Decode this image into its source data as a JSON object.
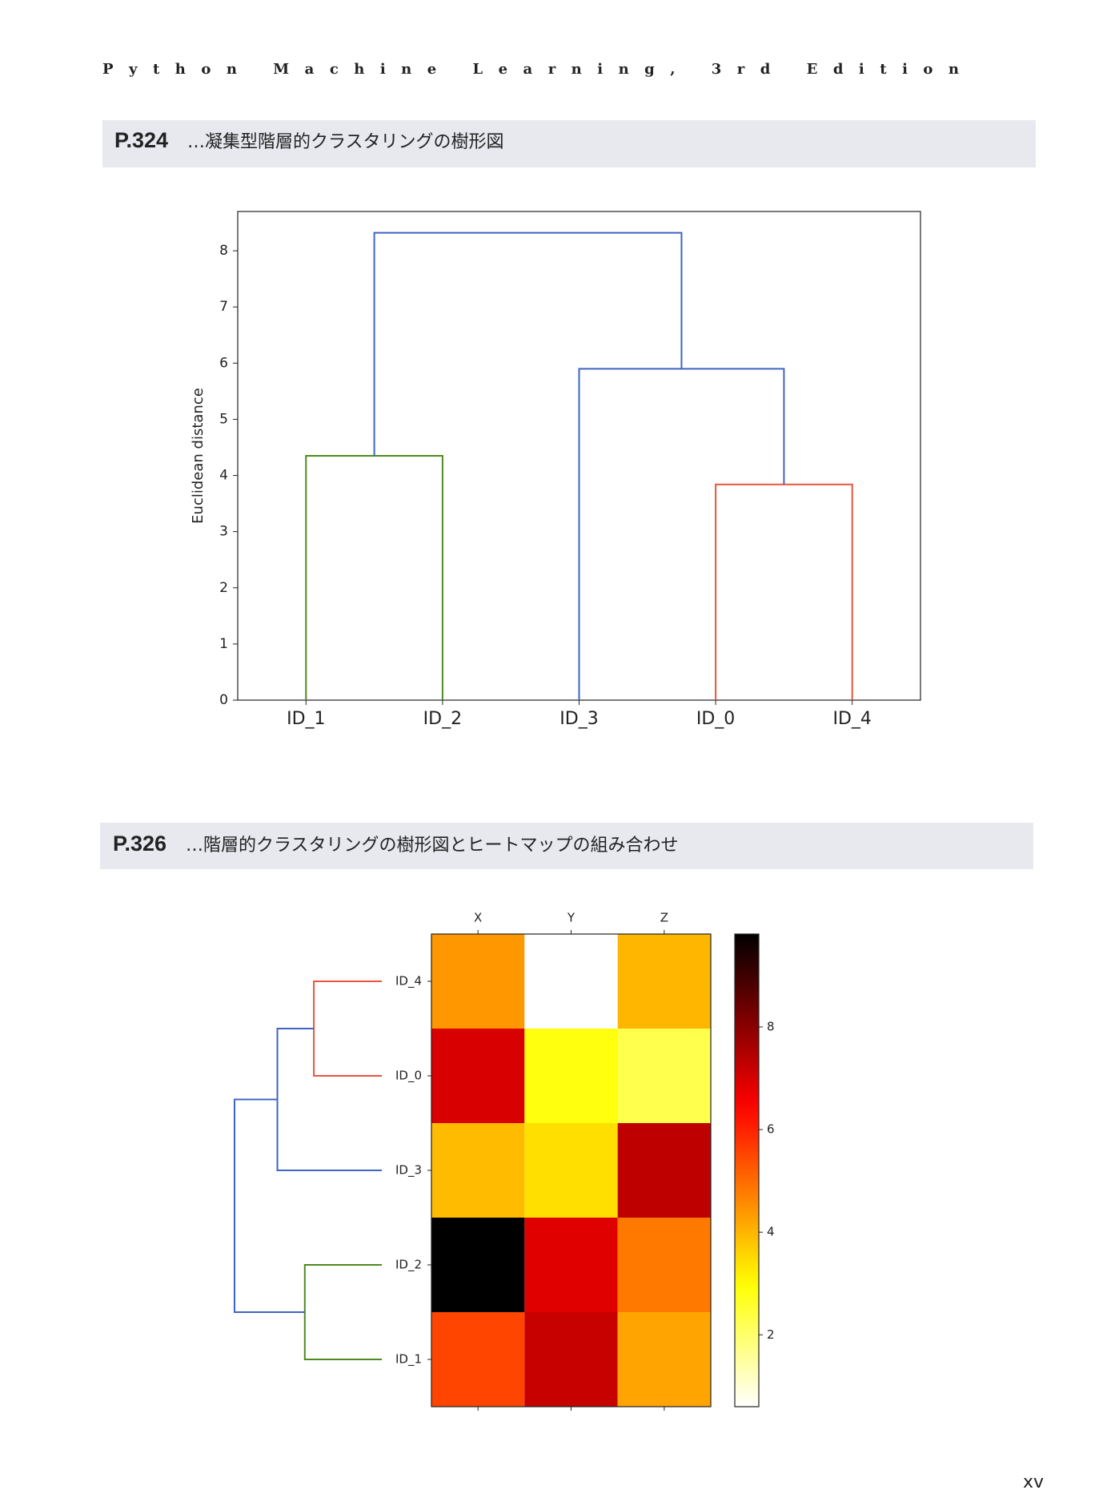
{
  "header": "Python Machine Learning, 3rd Edition",
  "sections": [
    {
      "page": "P.324",
      "title": "…凝集型階層的クラスタリングの樹形図"
    },
    {
      "page": "P.326",
      "title": "…階層的クラスタリングの樹形図とヒートマップの組み合わせ"
    }
  ],
  "chart_data": [
    {
      "type": "dendrogram",
      "ylabel": "Euclidean distance",
      "ylim": [
        0,
        8.7
      ],
      "yticks": [
        0,
        1,
        2,
        3,
        4,
        5,
        6,
        7,
        8
      ],
      "tree": {
        "height": 8.32,
        "color": "#3f64c4",
        "children": [
          {
            "height": 4.35,
            "color": "#4d8a1e",
            "children": [
              "ID_1",
              "ID_2"
            ]
          },
          {
            "height": 5.9,
            "color": "#3f64c4",
            "children": [
              "ID_3",
              {
                "height": 3.84,
                "color": "#e8553e",
                "children": [
                  "ID_0",
                  "ID_4"
                ]
              }
            ]
          }
        ]
      }
    },
    {
      "type": "heatmap",
      "columns": [
        "X",
        "Y",
        "Z"
      ],
      "colormap": "hot_r",
      "cticks": [
        2,
        4,
        6,
        8
      ],
      "tree": {
        "height": 8.32,
        "color": "#3f64c4",
        "children": [
          {
            "height": 4.35,
            "color": "#4d8a1e",
            "children": [
              "ID_1",
              "ID_2"
            ]
          },
          {
            "height": 5.9,
            "color": "#3f64c4",
            "children": [
              "ID_3",
              {
                "height": 3.84,
                "color": "#e8553e",
                "children": [
                  "ID_0",
                  "ID_4"
                ]
              }
            ]
          }
        ]
      },
      "values": [
        [
          5.51,
          7.19,
          4.23
        ],
        [
          9.81,
          6.85,
          4.81
        ],
        [
          3.92,
          3.43,
          7.29
        ],
        [
          6.96,
          2.86,
          2.27
        ],
        [
          4.39,
          0.6,
          3.98
        ]
      ]
    }
  ],
  "page_number": "xv"
}
